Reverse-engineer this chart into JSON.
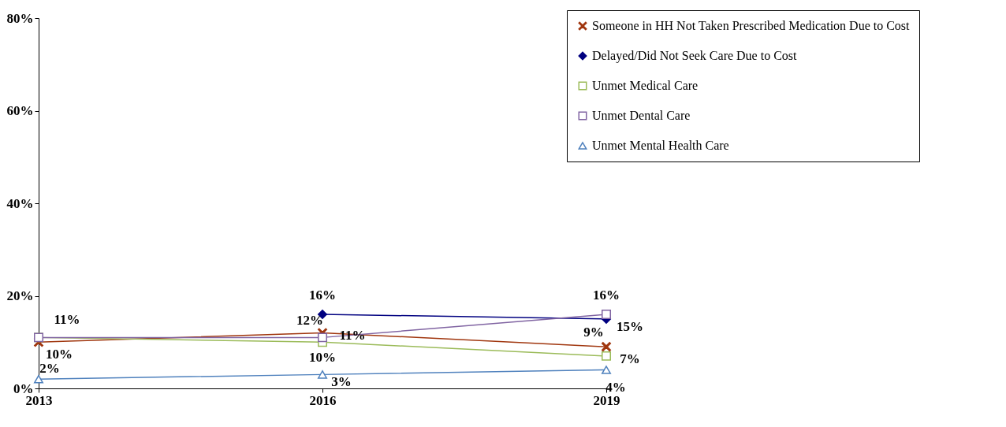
{
  "chart_data": {
    "type": "line",
    "categories": [
      "2013",
      "2016",
      "2019"
    ],
    "ylim": [
      0,
      80
    ],
    "yticks": [
      {
        "value": 0,
        "label": "0%"
      },
      {
        "value": 20,
        "label": "20%"
      },
      {
        "value": 40,
        "label": "40%"
      },
      {
        "value": 60,
        "label": "60%"
      },
      {
        "value": 80,
        "label": "80%"
      }
    ],
    "grid": false,
    "legend": "top right",
    "series": [
      {
        "name": "Someone in HH Not Taken Prescribed Medication Due to Cost",
        "color": "#a0360e",
        "marker": "cross",
        "values": [
          10,
          12,
          9
        ],
        "value_labels": [
          "10%",
          "12%",
          "9%"
        ]
      },
      {
        "name": "Delayed/Did Not Seek Care Due to Cost",
        "color": "#000080",
        "marker": "diamond",
        "values": [
          null,
          16,
          15
        ],
        "value_labels": [
          null,
          "16%",
          "15%"
        ]
      },
      {
        "name": "Unmet Medical Care",
        "color": "#9bbb59",
        "marker": "square",
        "values": [
          11,
          10,
          7
        ],
        "value_labels": [
          null,
          "10%",
          "7%"
        ]
      },
      {
        "name": "Unmet Dental Care",
        "color": "#8064a2",
        "marker": "square",
        "values": [
          11,
          11,
          16
        ],
        "value_labels": [
          "11%",
          "11%",
          "16%"
        ]
      },
      {
        "name": "Unmet Mental Health Care",
        "color": "#4f81bd",
        "marker": "triangle",
        "values": [
          2,
          3,
          4
        ],
        "value_labels": [
          "2%",
          "3%",
          "4%"
        ]
      }
    ]
  }
}
